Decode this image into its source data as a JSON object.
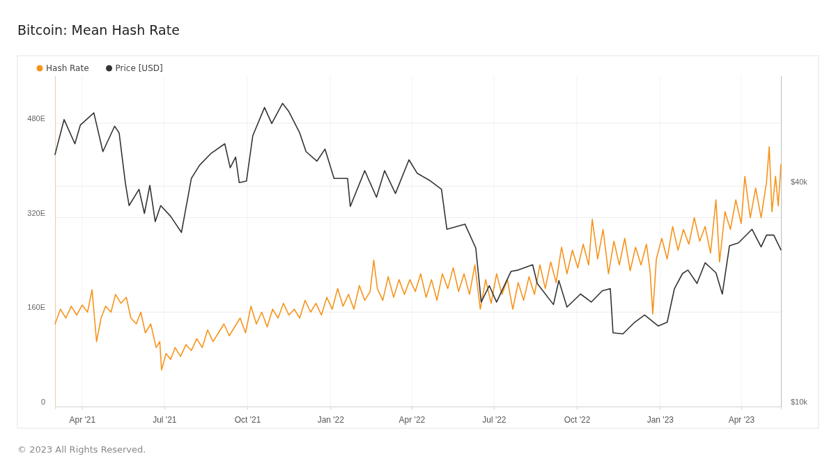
{
  "chart_data": {
    "type": "line",
    "title": "Bitcoin: Mean Hash Rate",
    "legend": "top left",
    "grid": true,
    "log": "y2",
    "annotations": [
      "© 2023 All Rights Reserved."
    ],
    "xlim": [
      "2021-03-02",
      "2023-05-15"
    ],
    "xticks": [
      {
        "value": "2021-04-01",
        "label": "Apr '21"
      },
      {
        "value": "2021-07-01",
        "label": "Jul '21"
      },
      {
        "value": "2021-10-01",
        "label": "Oct '21"
      },
      {
        "value": "2022-01-01",
        "label": "Jan '22"
      },
      {
        "value": "2022-04-01",
        "label": "Apr '22"
      },
      {
        "value": "2022-07-01",
        "label": "Jul '22"
      },
      {
        "value": "2022-10-01",
        "label": "Oct '22"
      },
      {
        "value": "2023-01-01",
        "label": "Jan '23"
      },
      {
        "value": "2023-04-01",
        "label": "Apr '23"
      }
    ],
    "ylim": [
      0,
      560
    ],
    "yticks": [
      0,
      {
        "value": 160,
        "label": "160E"
      },
      {
        "value": 320,
        "label": "320E"
      },
      {
        "value": 480,
        "label": "480E"
      }
    ],
    "y2lim": [
      10000,
      80000
    ],
    "y2ticks": [
      {
        "value": 10000,
        "label": "$10k"
      },
      {
        "value": 40000,
        "label": "$40k"
      }
    ],
    "series": [
      {
        "name": "Hash Rate",
        "type": "line",
        "color": "#f7931a",
        "x": [
          "2021-03-02",
          "2021-03-08",
          "2021-03-14",
          "2021-03-20",
          "2021-03-26",
          "2021-04-01",
          "2021-04-07",
          "2021-04-12",
          "2021-04-17",
          "2021-04-22",
          "2021-04-27",
          "2021-05-03",
          "2021-05-08",
          "2021-05-14",
          "2021-05-20",
          "2021-05-25",
          "2021-05-31",
          "2021-06-05",
          "2021-06-10",
          "2021-06-16",
          "2021-06-22",
          "2021-06-26",
          "2021-06-28",
          "2021-07-03",
          "2021-07-08",
          "2021-07-13",
          "2021-07-19",
          "2021-07-25",
          "2021-07-31",
          "2021-08-06",
          "2021-08-12",
          "2021-08-18",
          "2021-08-24",
          "2021-08-30",
          "2021-09-05",
          "2021-09-11",
          "2021-09-17",
          "2021-09-23",
          "2021-09-29",
          "2021-10-05",
          "2021-10-11",
          "2021-10-17",
          "2021-10-23",
          "2021-10-29",
          "2021-11-04",
          "2021-11-10",
          "2021-11-16",
          "2021-11-22",
          "2021-11-28",
          "2021-12-04",
          "2021-12-10",
          "2021-12-16",
          "2021-12-22",
          "2021-12-28",
          "2022-01-03",
          "2022-01-09",
          "2022-01-15",
          "2022-01-21",
          "2022-01-27",
          "2022-02-02",
          "2022-02-08",
          "2022-02-14",
          "2022-02-18",
          "2022-02-22",
          "2022-02-28",
          "2022-03-06",
          "2022-03-12",
          "2022-03-18",
          "2022-03-24",
          "2022-03-30",
          "2022-04-05",
          "2022-04-11",
          "2022-04-17",
          "2022-04-23",
          "2022-04-29",
          "2022-05-05",
          "2022-05-11",
          "2022-05-17",
          "2022-05-23",
          "2022-05-29",
          "2022-06-04",
          "2022-06-10",
          "2022-06-16",
          "2022-06-22",
          "2022-06-28",
          "2022-07-04",
          "2022-07-10",
          "2022-07-16",
          "2022-07-22",
          "2022-07-28",
          "2022-08-03",
          "2022-08-09",
          "2022-08-15",
          "2022-08-21",
          "2022-08-27",
          "2022-09-02",
          "2022-09-08",
          "2022-09-14",
          "2022-09-20",
          "2022-09-26",
          "2022-10-02",
          "2022-10-08",
          "2022-10-14",
          "2022-10-18",
          "2022-10-24",
          "2022-10-30",
          "2022-11-05",
          "2022-11-11",
          "2022-11-17",
          "2022-11-23",
          "2022-11-29",
          "2022-12-05",
          "2022-12-11",
          "2022-12-17",
          "2022-12-21",
          "2022-12-24",
          "2022-12-28",
          "2023-01-03",
          "2023-01-09",
          "2023-01-15",
          "2023-01-21",
          "2023-01-27",
          "2023-02-02",
          "2023-02-08",
          "2023-02-14",
          "2023-02-20",
          "2023-02-26",
          "2023-03-04",
          "2023-03-08",
          "2023-03-14",
          "2023-03-20",
          "2023-03-26",
          "2023-04-01",
          "2023-04-05",
          "2023-04-11",
          "2023-04-17",
          "2023-04-23",
          "2023-04-29",
          "2023-05-02",
          "2023-05-05",
          "2023-05-09",
          "2023-05-12",
          "2023-05-15"
        ],
        "values": [
          140,
          165,
          150,
          170,
          155,
          172,
          160,
          198,
          110,
          150,
          170,
          160,
          190,
          175,
          185,
          150,
          140,
          160,
          125,
          140,
          100,
          110,
          62,
          90,
          80,
          100,
          85,
          105,
          95,
          115,
          100,
          130,
          110,
          125,
          140,
          120,
          135,
          150,
          125,
          170,
          140,
          160,
          135,
          165,
          150,
          175,
          155,
          165,
          150,
          180,
          160,
          175,
          155,
          185,
          165,
          200,
          170,
          190,
          165,
          205,
          180,
          195,
          248,
          200,
          180,
          220,
          185,
          215,
          190,
          215,
          195,
          225,
          185,
          215,
          180,
          225,
          200,
          235,
          195,
          225,
          190,
          240,
          165,
          215,
          175,
          225,
          190,
          215,
          165,
          210,
          180,
          220,
          190,
          240,
          200,
          245,
          210,
          270,
          225,
          265,
          235,
          275,
          240,
          317,
          250,
          300,
          225,
          280,
          240,
          285,
          230,
          270,
          240,
          275,
          230,
          157,
          250,
          285,
          250,
          305,
          265,
          300,
          275,
          320,
          280,
          305,
          260,
          350,
          245,
          330,
          300,
          350,
          310,
          390,
          320,
          370,
          320,
          380,
          440,
          330,
          390,
          340,
          410
        ]
      },
      {
        "name": "Price [USD]",
        "type": "line",
        "color": "#333333",
        "axis": "y2",
        "x": [
          "2021-03-02",
          "2021-03-12",
          "2021-03-24",
          "2021-03-30",
          "2021-04-14",
          "2021-04-24",
          "2021-05-07",
          "2021-05-12",
          "2021-05-19",
          "2021-05-23",
          "2021-06-03",
          "2021-06-09",
          "2021-06-15",
          "2021-06-21",
          "2021-06-27",
          "2021-07-08",
          "2021-07-20",
          "2021-07-31",
          "2021-08-09",
          "2021-08-22",
          "2021-09-06",
          "2021-09-12",
          "2021-09-18",
          "2021-09-22",
          "2021-09-30",
          "2021-10-07",
          "2021-10-20",
          "2021-10-28",
          "2021-11-09",
          "2021-11-16",
          "2021-11-28",
          "2021-12-05",
          "2021-12-17",
          "2021-12-26",
          "2022-01-05",
          "2022-01-20",
          "2022-01-23",
          "2022-02-08",
          "2022-02-21",
          "2022-03-02",
          "2022-03-14",
          "2022-03-29",
          "2022-04-07",
          "2022-04-22",
          "2022-05-04",
          "2022-05-10",
          "2022-05-30",
          "2022-06-11",
          "2022-06-17",
          "2022-06-26",
          "2022-07-04",
          "2022-07-20",
          "2022-07-28",
          "2022-08-13",
          "2022-08-18",
          "2022-09-05",
          "2022-09-11",
          "2022-09-20",
          "2022-10-05",
          "2022-10-17",
          "2022-10-29",
          "2022-11-07",
          "2022-11-10",
          "2022-11-21",
          "2022-12-04",
          "2022-12-15",
          "2022-12-30",
          "2023-01-09",
          "2023-01-17",
          "2023-01-26",
          "2023-02-01",
          "2023-02-11",
          "2023-02-20",
          "2023-03-04",
          "2023-03-11",
          "2023-03-19",
          "2023-03-29",
          "2023-04-13",
          "2023-04-23",
          "2023-04-29",
          "2023-05-07",
          "2023-05-15"
        ],
        "values": [
          48800,
          60800,
          52200,
          58700,
          63400,
          49700,
          58300,
          55900,
          40600,
          35400,
          39200,
          33700,
          40200,
          32000,
          35400,
          33100,
          29900,
          42000,
          45600,
          49200,
          52200,
          44900,
          48000,
          40900,
          41300,
          54900,
          65600,
          59300,
          67300,
          63900,
          55900,
          49700,
          46800,
          50500,
          42000,
          42000,
          35200,
          44100,
          37300,
          44100,
          38200,
          47200,
          43400,
          41300,
          39200,
          30500,
          31500,
          27100,
          19300,
          21400,
          19300,
          23400,
          23600,
          24400,
          21700,
          19000,
          22100,
          18700,
          20300,
          19300,
          20700,
          21000,
          15900,
          15800,
          17000,
          17800,
          16600,
          17000,
          21000,
          23100,
          23600,
          21700,
          24700,
          23200,
          20300,
          27500,
          28000,
          30500,
          27300,
          29400,
          29400,
          26800
        ]
      }
    ]
  }
}
